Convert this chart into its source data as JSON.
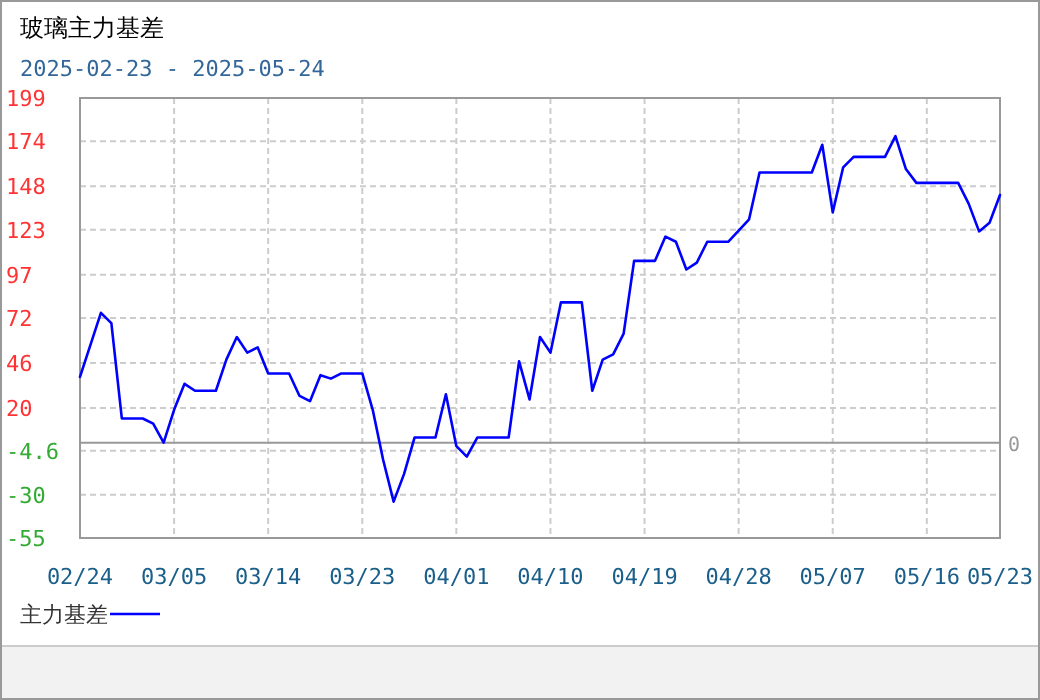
{
  "chart_data": {
    "type": "line",
    "title": "玻璃主力基差",
    "subtitle": "2025-02-23 - 2025-05-24",
    "x": [
      "--02-24",
      "--02-26",
      "--02-27",
      "--02-28",
      "--03-02",
      "--03-03",
      "--03-04",
      "--03-05",
      "--03-06",
      "--03-07",
      "--03-09",
      "--03-10",
      "--03-11",
      "--03-12",
      "--03-13",
      "--03-14",
      "--03-16",
      "--03-17",
      "--03-18",
      "--03-19",
      "--03-20",
      "--03-21",
      "--03-23",
      "--03-24",
      "--03-25",
      "--03-26",
      "--03-27",
      "--03-28",
      "--03-30",
      "--03-31",
      "--04-01",
      "--04-02",
      "--04-03",
      "--04-06",
      "--04-07",
      "--04-08",
      "--04-09",
      "--04-10",
      "--04-11",
      "--04-13",
      "--04-14",
      "--04-15",
      "--04-16",
      "--04-17",
      "--04-18",
      "--04-20",
      "--04-21",
      "--04-22",
      "--04-23",
      "--04-24",
      "--04-25",
      "--04-27",
      "--04-29",
      "--04-30",
      "--05-05",
      "--05-06",
      "--05-07",
      "--05-08",
      "--05-09",
      "--05-12",
      "--05-13",
      "--05-14",
      "--05-15",
      "--05-19",
      "--05-20",
      "--05-21",
      "--05-22",
      "--05-23"
    ],
    "series": [
      {
        "name": "主力基差",
        "color": "#0000ff",
        "values": [
          38,
          75,
          69,
          14,
          14,
          11,
          0,
          19,
          34,
          30,
          30,
          48,
          61,
          52,
          55,
          40,
          40,
          27,
          24,
          39,
          37,
          40,
          40,
          19,
          -10,
          -34,
          -18,
          3,
          3,
          28,
          -2,
          -8,
          3,
          3,
          47,
          25,
          61,
          52,
          81,
          81,
          30,
          48,
          51,
          63,
          105,
          105,
          119,
          116,
          100,
          104,
          116,
          116,
          129,
          156,
          156,
          172,
          133,
          159,
          165,
          165,
          177,
          158,
          150,
          150,
          138,
          122,
          127,
          143
        ]
      }
    ],
    "xlim": [
      "--02-24",
      "--05-23"
    ],
    "xticks": [
      {
        "value": "--02-24",
        "label": "02/24"
      },
      {
        "value": "--03-05",
        "label": "03/05"
      },
      {
        "value": "--03-14",
        "label": "03/14"
      },
      {
        "value": "--03-23",
        "label": "03/23"
      },
      {
        "value": "--04-01",
        "label": "04/01"
      },
      {
        "value": "--04-10",
        "label": "04/10"
      },
      {
        "value": "--04-19",
        "label": "04/19"
      },
      {
        "value": "--04-28",
        "label": "04/28"
      },
      {
        "value": "--05-07",
        "label": "05/07"
      },
      {
        "value": "--05-16",
        "label": "05/16"
      },
      {
        "value": "--05-23",
        "label": "05/23"
      }
    ],
    "ylim": [
      -55,
      199
    ],
    "yticks": [
      199,
      174,
      148,
      123,
      97,
      72,
      46,
      20,
      -4.6,
      -30,
      -55
    ],
    "ref_lines": [
      {
        "axis": "y",
        "value": 0,
        "label": "0",
        "color": "#999999",
        "line_style": "solid"
      }
    ],
    "grid": true,
    "legend": "bottom left",
    "marker": "none",
    "line_style": "solid"
  }
}
